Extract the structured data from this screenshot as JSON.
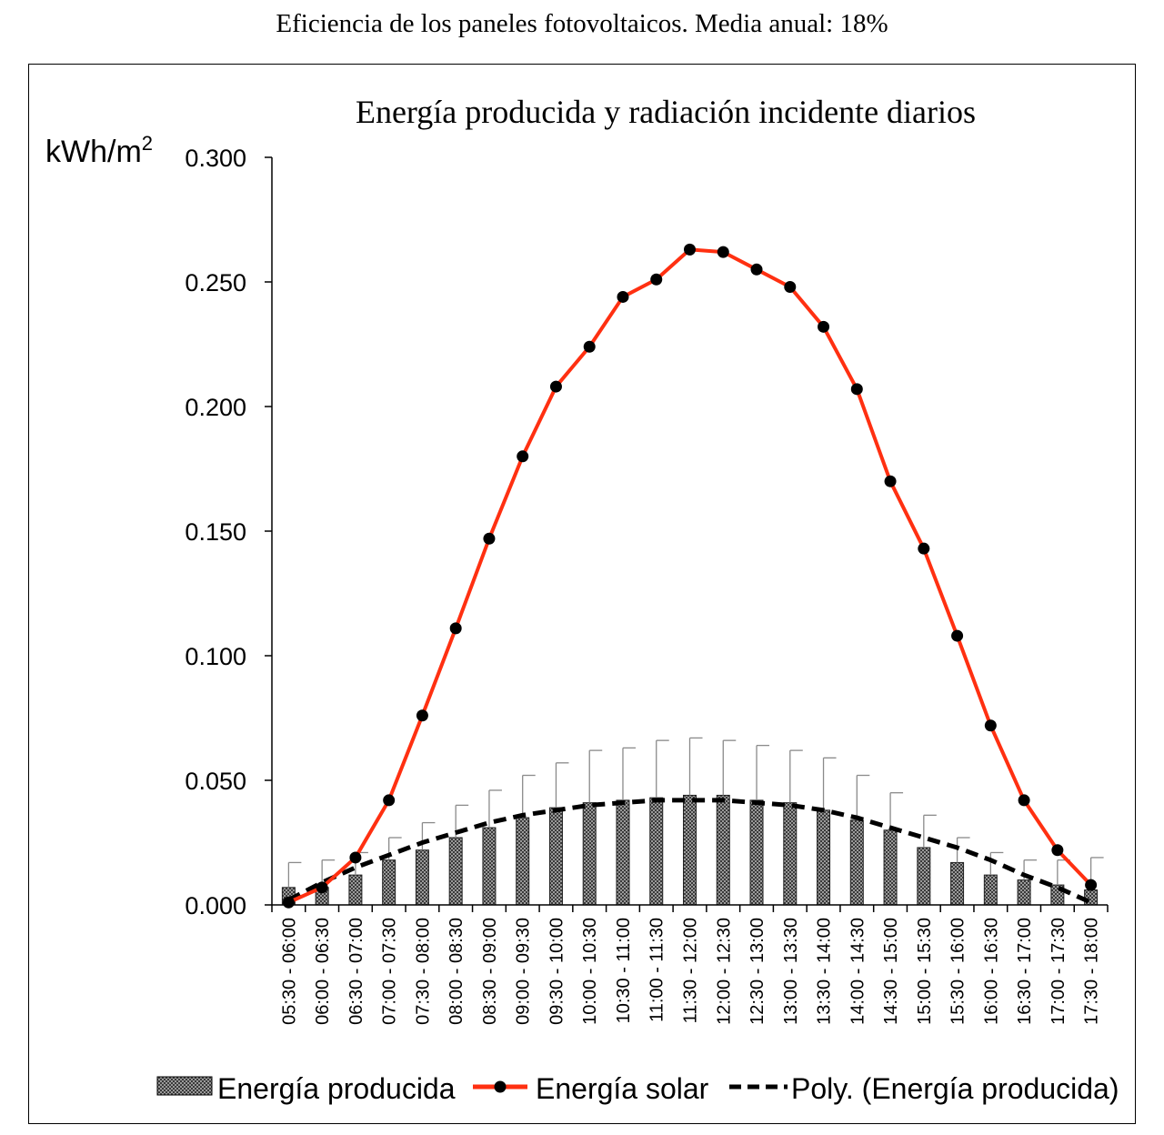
{
  "page": {
    "title": "Eficiencia de los paneles fotovoltaicos. Media anual: 18%"
  },
  "chart_data": {
    "type": "bar",
    "title": "Energía producida y radiación incidente diarios",
    "ylabel": "kWh/m",
    "ylabel_sup": "2",
    "xlabel": "",
    "ylim": [
      0,
      0.3
    ],
    "yticks": [
      "0.000",
      "0.050",
      "0.100",
      "0.150",
      "0.200",
      "0.250",
      "0.300"
    ],
    "grid": false,
    "legend_position": "bottom",
    "categories": [
      "05:30 - 06:00",
      "06:00 - 06:30",
      "06:30 - 07:00",
      "07:00 - 07:30",
      "07:30 - 08:00",
      "08:00 - 08:30",
      "08:30 - 09:00",
      "09:00 - 09:30",
      "09:30 - 10:00",
      "10:00 - 10:30",
      "10:30 - 11:00",
      "11:00 - 11:30",
      "11:30 - 12:00",
      "12:00 - 12:30",
      "12:30 - 13:00",
      "13:00 - 13:30",
      "13:30 - 14:00",
      "14:00 - 14:30",
      "14:30 - 15:00",
      "15:00 - 15:30",
      "15:30 - 16:00",
      "16:00 - 16:30",
      "16:30 - 17:00",
      "17:00 - 17:30",
      "17:30 - 18:00"
    ],
    "series": [
      {
        "name": "Energía producida",
        "kind": "bar",
        "color": "#3a3a3a",
        "values": [
          0.007,
          0.007,
          0.012,
          0.018,
          0.022,
          0.027,
          0.031,
          0.035,
          0.039,
          0.041,
          0.042,
          0.043,
          0.044,
          0.044,
          0.042,
          0.041,
          0.038,
          0.034,
          0.03,
          0.023,
          0.017,
          0.012,
          0.01,
          0.008,
          0.006
        ],
        "error_upper": [
          0.017,
          0.018,
          0.021,
          0.027,
          0.033,
          0.04,
          0.046,
          0.052,
          0.057,
          0.062,
          0.063,
          0.066,
          0.067,
          0.066,
          0.064,
          0.062,
          0.059,
          0.052,
          0.045,
          0.036,
          0.027,
          0.021,
          0.018,
          0.018,
          0.019
        ]
      },
      {
        "name": "Energía solar",
        "kind": "line",
        "color": "#ff3011",
        "values": [
          0.001,
          0.007,
          0.019,
          0.042,
          0.076,
          0.111,
          0.147,
          0.18,
          0.208,
          0.224,
          0.244,
          0.251,
          0.263,
          0.262,
          0.255,
          0.248,
          0.232,
          0.207,
          0.17,
          0.143,
          0.108,
          0.072,
          0.042,
          0.022,
          0.008
        ]
      },
      {
        "name": "Poly. (Energía producida)",
        "kind": "trendline",
        "color": "#000000",
        "values": [
          0.002,
          0.009,
          0.015,
          0.02,
          0.025,
          0.029,
          0.033,
          0.036,
          0.038,
          0.04,
          0.041,
          0.042,
          0.042,
          0.042,
          0.041,
          0.04,
          0.038,
          0.035,
          0.031,
          0.027,
          0.023,
          0.018,
          0.012,
          0.007,
          0.001
        ]
      }
    ]
  }
}
